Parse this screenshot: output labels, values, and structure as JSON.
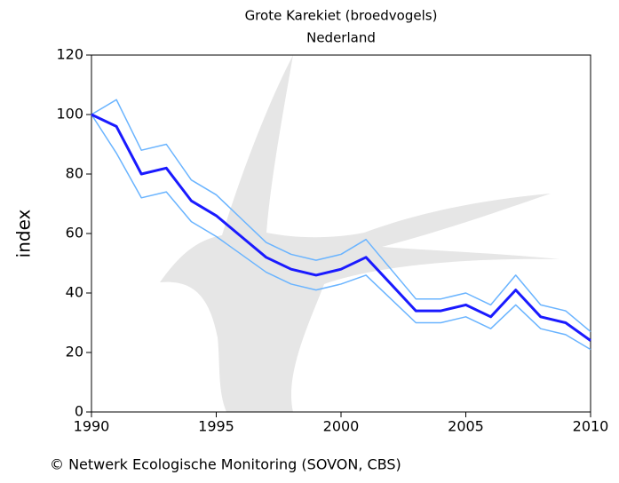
{
  "chart_data": {
    "type": "line",
    "title": "Grote Karekiet (broedvogels)",
    "subtitle": "Nederland",
    "y_label": "index",
    "source": "© Netwerk Ecologische Monitoring (SOVON, CBS)",
    "x": [
      1990,
      1991,
      1992,
      1993,
      1994,
      1995,
      1996,
      1997,
      1998,
      1999,
      2000,
      2001,
      2002,
      2003,
      2004,
      2005,
      2006,
      2007,
      2008,
      2009,
      2010
    ],
    "series": [
      {
        "color": "#6ab4ff",
        "width": 1.5,
        "values": [
          100,
          105,
          88,
          90,
          78,
          73,
          65,
          57,
          53,
          51,
          53,
          58,
          48,
          38,
          38,
          40,
          36,
          46,
          36,
          34,
          27
        ]
      },
      {
        "color": "#6ab4ff",
        "width": 1.5,
        "values": [
          100,
          87,
          72,
          74,
          64,
          59,
          53,
          47,
          43,
          41,
          43,
          46,
          38,
          30,
          30,
          32,
          28,
          36,
          28,
          26,
          21
        ]
      },
      {
        "color": "#1a1aff",
        "width": 3,
        "values": [
          100,
          96,
          80,
          82,
          71,
          66,
          59,
          52,
          48,
          46,
          48,
          52,
          43,
          34,
          34,
          36,
          32,
          41,
          32,
          30,
          24
        ]
      }
    ],
    "xlim": [
      1990,
      2010
    ],
    "xticks": [
      1990,
      1995,
      2000,
      2005,
      2010
    ],
    "ylim": [
      0,
      120
    ],
    "yticks": [
      0,
      20,
      40,
      60,
      80,
      100,
      120
    ]
  }
}
